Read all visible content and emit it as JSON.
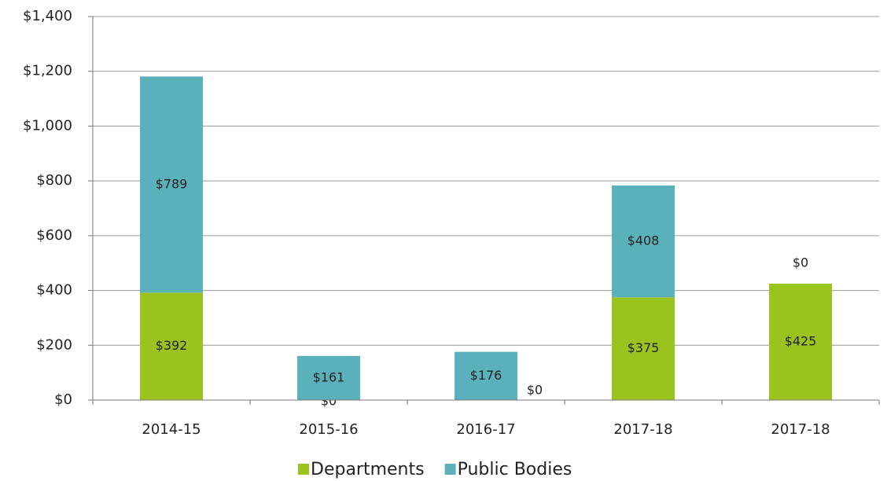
{
  "chart_data": {
    "type": "stacked_bar",
    "categories": [
      "2014-15",
      "2015-16",
      "2016-17",
      "2017-18",
      "2017-18"
    ],
    "series": [
      {
        "name": "Departments",
        "color": "#9bc31f",
        "values": [
          392,
          0,
          0,
          375,
          425
        ],
        "value_labels": [
          "$392",
          "$0",
          "$0",
          "$375",
          "$425"
        ]
      },
      {
        "name": "Public Bodies",
        "color": "#5bb1bb",
        "values": [
          789,
          161,
          176,
          408,
          0
        ],
        "value_labels": [
          "$789",
          "$161",
          "$176",
          "$408",
          "$0"
        ]
      }
    ],
    "ylim": [
      0,
      1400
    ],
    "yticks": [
      {
        "value": 0,
        "label": "$0"
      },
      {
        "value": 200,
        "label": "$200"
      },
      {
        "value": 400,
        "label": "$400"
      },
      {
        "value": 600,
        "label": "$600"
      },
      {
        "value": 800,
        "label": "$800"
      },
      {
        "value": 1000,
        "label": "$1,000"
      },
      {
        "value": 1200,
        "label": "$1,200"
      },
      {
        "value": 1400,
        "label": "$1,400"
      }
    ],
    "grid": true,
    "legend": "bottom"
  }
}
